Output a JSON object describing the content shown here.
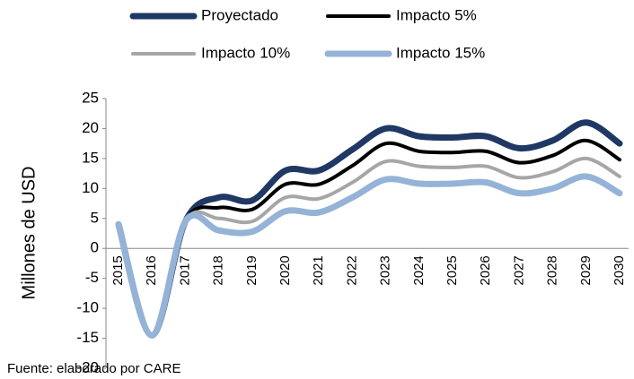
{
  "chart_data": {
    "type": "line",
    "y_label": "Millones de USD",
    "source": "Fuente: elaborado por CARE",
    "categories": [
      "2015",
      "2016",
      "2017",
      "2018",
      "2019",
      "2020",
      "2021",
      "2022",
      "2023",
      "2024",
      "2025",
      "2026",
      "2027",
      "2028",
      "2029",
      "2030"
    ],
    "series": [
      {
        "name": "Proyectado",
        "color": "#1f3864",
        "values": [
          4,
          -14.5,
          4.5,
          8.5,
          8,
          13,
          13,
          16.5,
          20,
          18.7,
          18.5,
          18.7,
          16.7,
          18,
          21,
          17.5
        ]
      },
      {
        "name": "Impacto 5%",
        "color": "#000000",
        "values": [
          4,
          -14.5,
          4.5,
          6.8,
          6.5,
          10.7,
          10.7,
          13.8,
          17.5,
          16.2,
          16,
          16.2,
          14.3,
          15.5,
          18,
          14.8
        ]
      },
      {
        "name": "Impacto 10%",
        "color": "#a6a6a6",
        "values": [
          4,
          -14.5,
          4.5,
          5,
          4.5,
          8.5,
          8.3,
          11,
          14.5,
          13.7,
          13.5,
          13.7,
          11.8,
          12.8,
          15,
          12
        ]
      },
      {
        "name": "Impacto 15%",
        "color": "#95b3d7",
        "values": [
          4,
          -14.5,
          4.5,
          3,
          2.8,
          6.2,
          6,
          8.5,
          11.5,
          10.8,
          10.8,
          11,
          9.2,
          10,
          12,
          9.2
        ]
      }
    ],
    "ylim": [
      -20,
      25
    ],
    "yticks": [
      -20,
      -15,
      -10,
      -5,
      0,
      5,
      10,
      15,
      20,
      25
    ],
    "legend": "top"
  }
}
